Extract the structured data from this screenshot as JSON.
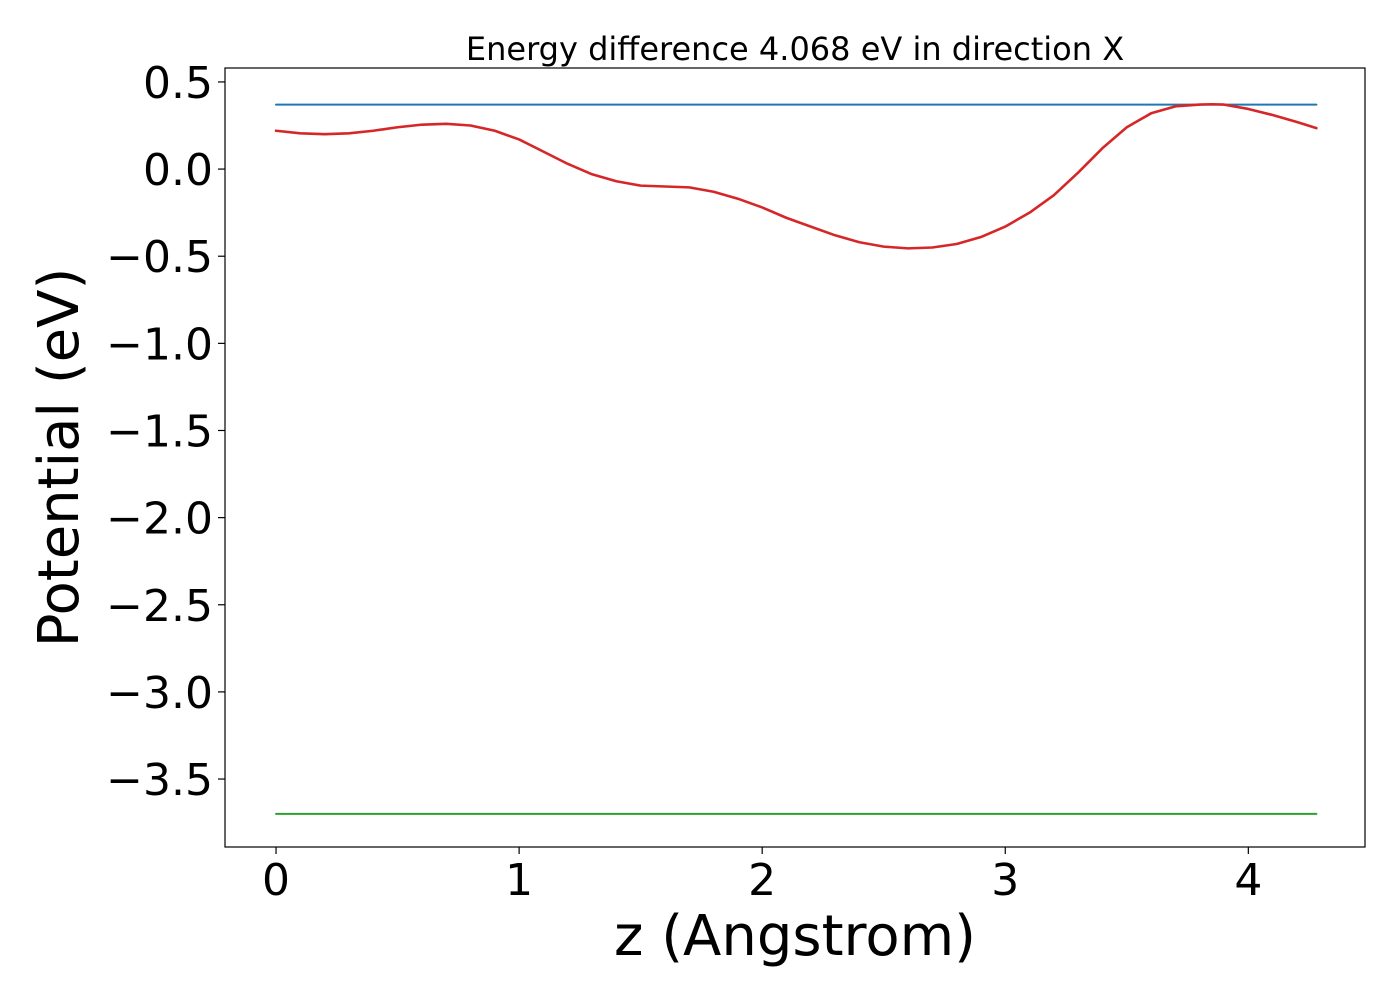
{
  "chart_data": {
    "type": "line",
    "title": "Energy difference 4.068 eV in direction X",
    "xlabel": "z (Angstrom)",
    "ylabel": "Potential (eV)",
    "xlim": [
      -0.21,
      4.48
    ],
    "ylim": [
      -3.89,
      0.58
    ],
    "xticks": [
      0,
      1,
      2,
      3,
      4
    ],
    "yticks": [
      0.5,
      0.0,
      -0.5,
      -1.0,
      -1.5,
      -2.0,
      -2.5,
      -3.0,
      -3.5
    ],
    "grid": false,
    "series": [
      {
        "color": "#1f77b4",
        "x": [
          0,
          4.28
        ],
        "y": [
          0.37,
          0.37
        ]
      },
      {
        "color": "#2ca02c",
        "x": [
          0,
          4.28
        ],
        "y": [
          -3.7,
          -3.7
        ]
      },
      {
        "color": "#d62728",
        "x": [
          0.0,
          0.1,
          0.2,
          0.3,
          0.4,
          0.5,
          0.6,
          0.7,
          0.8,
          0.9,
          1.0,
          1.1,
          1.2,
          1.3,
          1.4,
          1.5,
          1.6,
          1.7,
          1.8,
          1.9,
          2.0,
          2.1,
          2.2,
          2.3,
          2.4,
          2.5,
          2.6,
          2.7,
          2.8,
          2.9,
          3.0,
          3.1,
          3.2,
          3.3,
          3.4,
          3.5,
          3.6,
          3.7,
          3.8,
          3.85,
          3.9,
          4.0,
          4.1,
          4.2,
          4.28
        ],
        "y": [
          0.22,
          0.205,
          0.2,
          0.205,
          0.22,
          0.24,
          0.255,
          0.26,
          0.25,
          0.22,
          0.17,
          0.1,
          0.03,
          -0.03,
          -0.07,
          -0.095,
          -0.1,
          -0.105,
          -0.13,
          -0.17,
          -0.22,
          -0.28,
          -0.33,
          -0.38,
          -0.42,
          -0.445,
          -0.455,
          -0.45,
          -0.43,
          -0.39,
          -0.33,
          -0.25,
          -0.15,
          -0.02,
          0.12,
          0.24,
          0.32,
          0.36,
          0.37,
          0.372,
          0.37,
          0.345,
          0.31,
          0.27,
          0.235
        ]
      }
    ]
  }
}
